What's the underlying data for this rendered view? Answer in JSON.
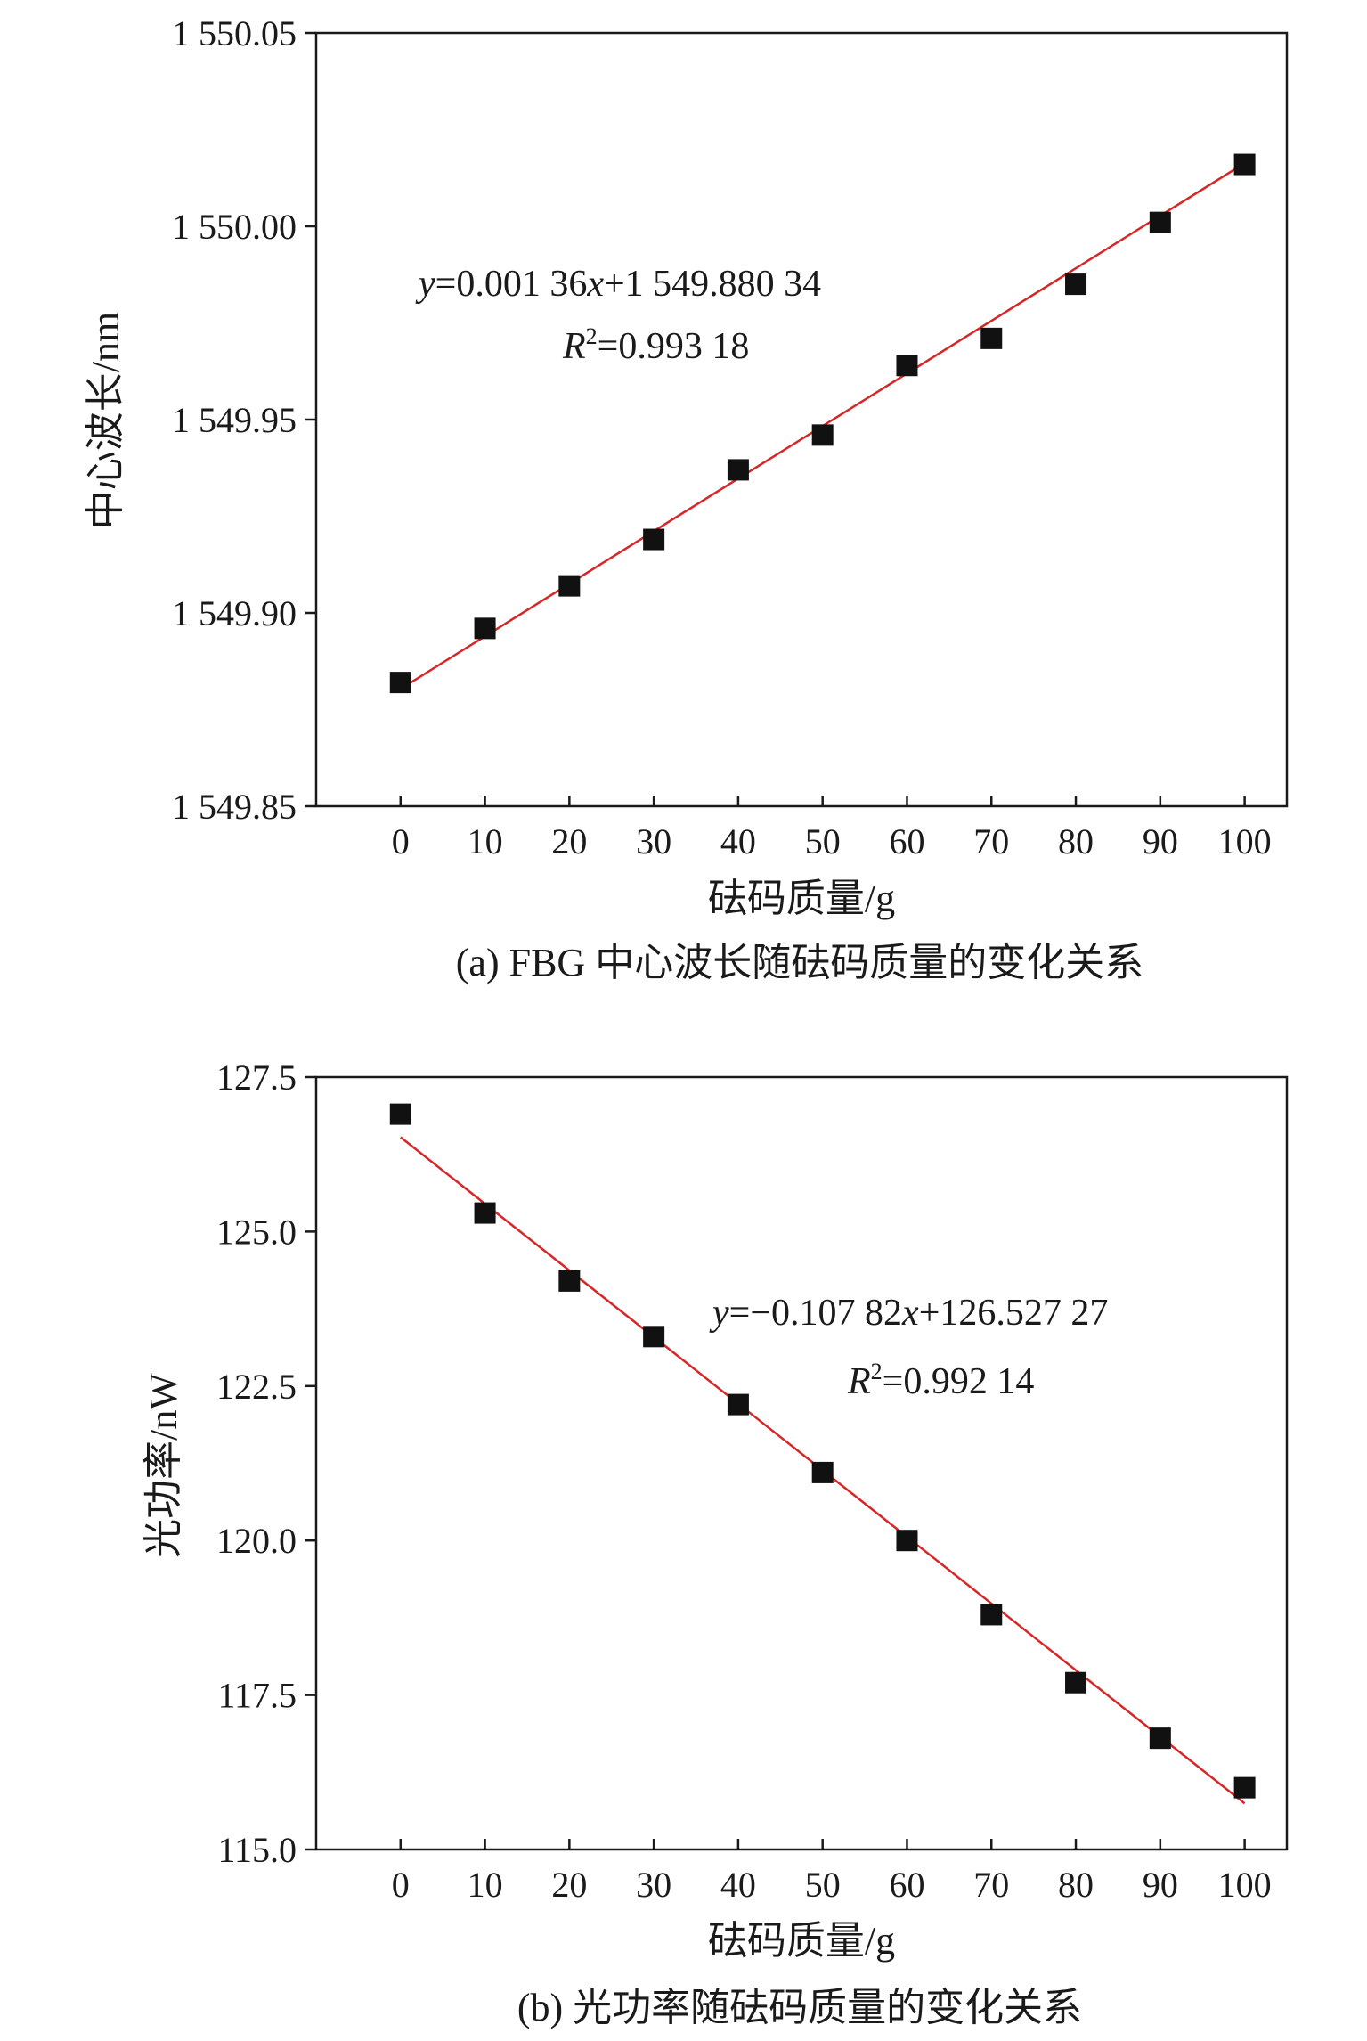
{
  "chart_data": [
    {
      "type": "scatter",
      "caption": "(a) FBG 中心波长随砝码质量的变化关系",
      "xlabel": "砝码质量/g",
      "ylabel": "中心波长/nm",
      "xlim": [
        -10,
        105
      ],
      "ylim": [
        1549.85,
        1550.05
      ],
      "xticks": [
        0,
        10,
        20,
        30,
        40,
        50,
        60,
        70,
        80,
        90,
        100
      ],
      "yticks": [
        1549.85,
        1549.9,
        1549.95,
        1550.0,
        1550.05
      ],
      "ytick_labels": [
        "1 549.85",
        "1 549.90",
        "1 549.95",
        "1 550.00",
        "1 550.05"
      ],
      "x": [
        0,
        10,
        20,
        30,
        40,
        50,
        60,
        70,
        80,
        90,
        100
      ],
      "y": [
        1549.882,
        1549.896,
        1549.907,
        1549.919,
        1549.937,
        1549.946,
        1549.964,
        1549.971,
        1549.985,
        1550.001,
        1550.016
      ],
      "fit": {
        "slope": 0.00136,
        "intercept": 1549.88034,
        "color": "#d62728"
      },
      "equation": {
        "y": "y",
        "mid": "=0.001 36",
        "x": "x",
        "tail": "+1 549.880 34"
      },
      "r2": {
        "R": "R",
        "sup": "2",
        "val": "=0.993 18"
      },
      "marker_color": "#111111",
      "grid": false
    },
    {
      "type": "scatter",
      "caption": "(b) 光功率随砝码质量的变化关系",
      "xlabel": "砝码质量/g",
      "ylabel": "光功率/nW",
      "xlim": [
        -10,
        105
      ],
      "ylim": [
        115.0,
        127.5
      ],
      "xticks": [
        0,
        10,
        20,
        30,
        40,
        50,
        60,
        70,
        80,
        90,
        100
      ],
      "yticks": [
        115.0,
        117.5,
        120.0,
        122.5,
        125.0,
        127.5
      ],
      "ytick_labels": [
        "115.0",
        "117.5",
        "120.0",
        "122.5",
        "125.0",
        "127.5"
      ],
      "x": [
        0,
        10,
        20,
        30,
        40,
        50,
        60,
        70,
        80,
        90,
        100
      ],
      "y": [
        126.9,
        125.3,
        124.2,
        123.3,
        122.2,
        121.1,
        120.0,
        118.8,
        117.7,
        116.8,
        116.0
      ],
      "fit": {
        "slope": -0.10782,
        "intercept": 126.52727,
        "color": "#d62728"
      },
      "equation": {
        "y": "y",
        "mid": "=−0.107 82",
        "x": "x",
        "tail": "+126.527 27"
      },
      "r2": {
        "R": "R",
        "sup": "2",
        "val": "=0.992 14"
      },
      "marker_color": "#111111",
      "grid": false
    }
  ]
}
